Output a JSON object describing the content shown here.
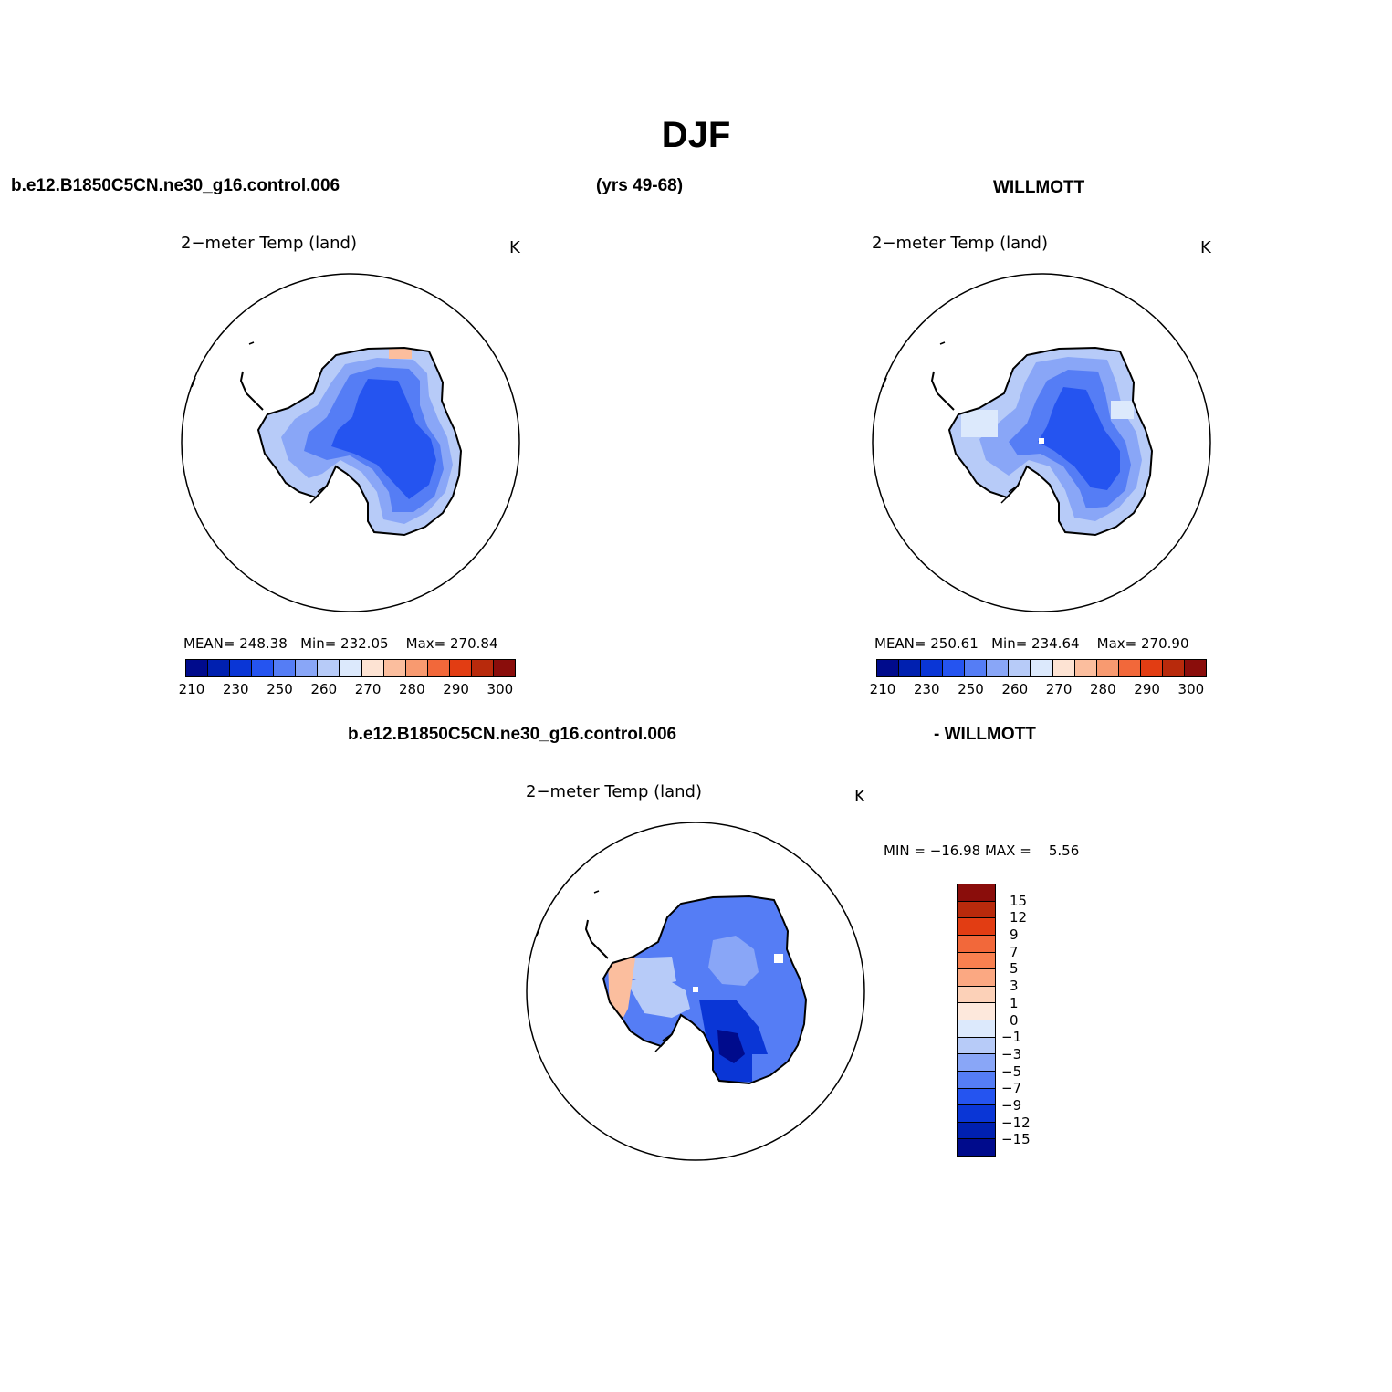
{
  "page": {
    "title": "DJF",
    "left_case": "b.e12.B1850C5CN.ne30_g16.control.006",
    "years": "(yrs 49-68)",
    "right_case": "WILLMOTT",
    "diff_case": "b.e12.B1850C5CN.ne30_g16.control.006",
    "diff_obs": "- WILLMOTT"
  },
  "panels": {
    "model": {
      "field_label": "2−meter Temp (land)",
      "units": "K",
      "mean_label": "MEAN=",
      "mean": "248.38",
      "min_label": "Min=",
      "min": "232.05",
      "max_label": "Max=",
      "max": "270.84"
    },
    "obs": {
      "field_label": "2−meter Temp (land)",
      "units": "K",
      "mean_label": "MEAN=",
      "mean": "250.61",
      "min_label": "Min=",
      "min": "234.64",
      "max_label": "Max=",
      "max": "270.90"
    },
    "diff": {
      "field_label": "2−meter Temp (land)",
      "units": "K",
      "minmax_text": "MIN = −16.98 MAX =    5.56"
    }
  },
  "abs_colorbar": {
    "colors": [
      "#000b8c",
      "#0020b0",
      "#0a36d6",
      "#2554f0",
      "#557df5",
      "#89a6f7",
      "#b7cbf8",
      "#dce9fc",
      "#fde3d3",
      "#fbbe9e",
      "#f89a70",
      "#f2683a",
      "#e23d13",
      "#b82a0c",
      "#8a0d0b"
    ],
    "tick_labels": [
      "210",
      "230",
      "250",
      "260",
      "270",
      "280",
      "290",
      "300"
    ]
  },
  "diff_colorbar": {
    "colors_top_to_bottom": [
      "#8a0d0b",
      "#b82a0c",
      "#e23d13",
      "#f2683a",
      "#f88050",
      "#fba882",
      "#fcd1b8",
      "#fde8dc",
      "#dce9fc",
      "#b7cbf8",
      "#89a6f7",
      "#557df5",
      "#2554f0",
      "#0a36d6",
      "#0020b0",
      "#000b8c"
    ],
    "tick_labels": [
      "15",
      "12",
      "9",
      "7",
      "5",
      "3",
      "1",
      "0",
      "−1",
      "−3",
      "−5",
      "−7",
      "−9",
      "−12",
      "−15"
    ]
  },
  "map_colors": {
    "model": {
      "edge": "#b7cbf8",
      "mid": "#89a6f7",
      "inner": "#557df5",
      "core": "#2554f0"
    },
    "obs": {
      "edge": "#b7cbf8",
      "mid": "#89a6f7",
      "inner": "#557df5",
      "core": "#2554f0"
    },
    "diff": {
      "base": "#557df5",
      "light": "#89a6f7",
      "pale": "#b7cbf8",
      "dark": "#0a36d6",
      "darkest": "#000b8c",
      "warm": "#fbbe9e"
    }
  }
}
